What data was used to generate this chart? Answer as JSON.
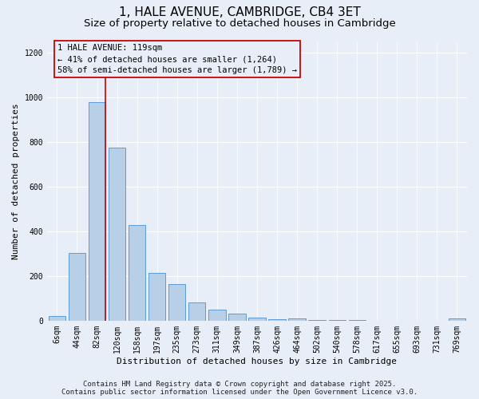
{
  "title": "1, HALE AVENUE, CAMBRIDGE, CB4 3ET",
  "subtitle": "Size of property relative to detached houses in Cambridge",
  "xlabel": "Distribution of detached houses by size in Cambridge",
  "ylabel": "Number of detached properties",
  "categories": [
    "6sqm",
    "44sqm",
    "82sqm",
    "120sqm",
    "158sqm",
    "197sqm",
    "235sqm",
    "273sqm",
    "311sqm",
    "349sqm",
    "387sqm",
    "426sqm",
    "464sqm",
    "502sqm",
    "540sqm",
    "578sqm",
    "617sqm",
    "655sqm",
    "693sqm",
    "731sqm",
    "769sqm"
  ],
  "bar_heights": [
    22,
    305,
    980,
    775,
    430,
    215,
    165,
    80,
    50,
    30,
    15,
    5,
    10,
    3,
    2,
    2,
    1,
    1,
    1,
    1,
    10
  ],
  "bar_color": "#b8cfe8",
  "bar_edge_color": "#5b9bd5",
  "vline_color": "#cc0000",
  "annotation_text": "1 HALE AVENUE: 119sqm\n← 41% of detached houses are smaller (1,264)\n58% of semi-detached houses are larger (1,789) →",
  "annotation_box_color": "#cc0000",
  "background_color": "#e8eef7",
  "ylim": [
    0,
    1250
  ],
  "yticks": [
    0,
    200,
    400,
    600,
    800,
    1000,
    1200
  ],
  "footer_line1": "Contains HM Land Registry data © Crown copyright and database right 2025.",
  "footer_line2": "Contains public sector information licensed under the Open Government Licence v3.0.",
  "title_fontsize": 11,
  "subtitle_fontsize": 9.5,
  "axis_label_fontsize": 8,
  "tick_fontsize": 7,
  "annotation_fontsize": 7.5,
  "footer_fontsize": 6.5
}
